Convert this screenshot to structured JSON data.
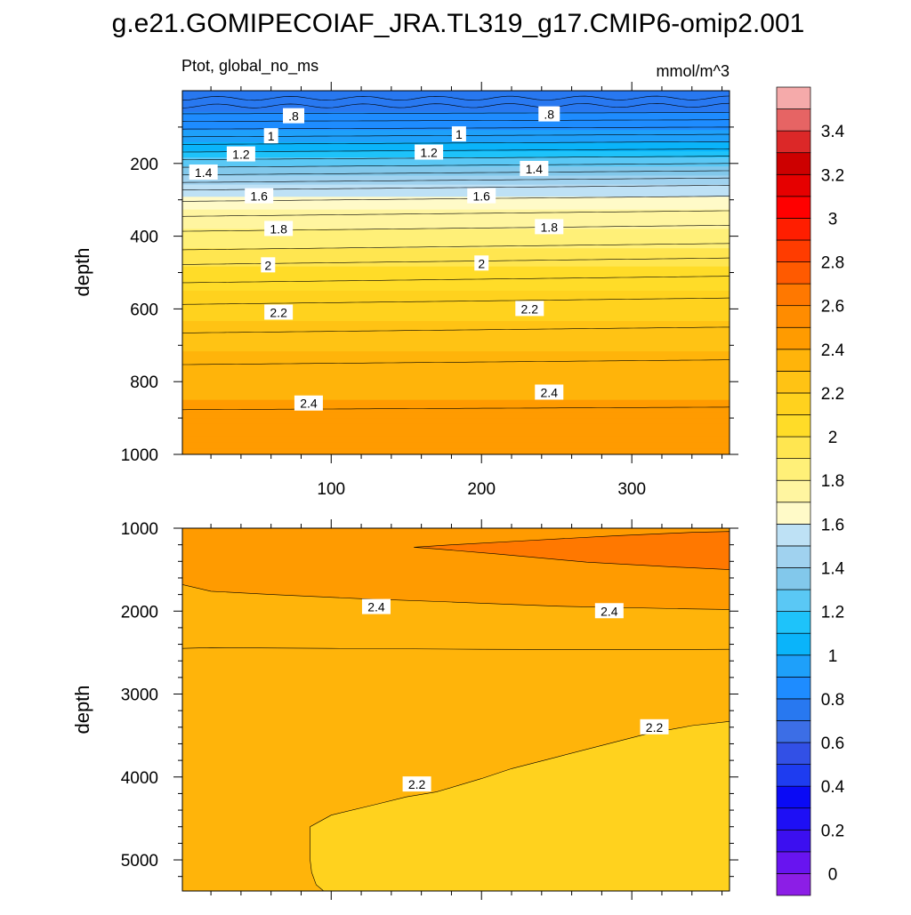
{
  "page_title": "g.e21.GOMIPECOIAF_JRA.TL319_g17.CMIP6-omip2.001",
  "chart_data": [
    {
      "type": "heatmap",
      "subtitle_left": "Ptot, global_no_ms",
      "subtitle_right": "mmol/m^3",
      "ylabel": "depth",
      "xlabel": "",
      "xlim": [
        1,
        365
      ],
      "ylim": [
        0,
        1000
      ],
      "y_reversed": true,
      "x_ticks": [
        100,
        200,
        300
      ],
      "x_tick_labels": [
        "100",
        "200",
        "300"
      ],
      "y_ticks": [
        200,
        400,
        600,
        800,
        1000
      ],
      "y_tick_labels": [
        "200",
        "400",
        "600",
        "800",
        "1000"
      ],
      "field_profile": [
        {
          "depth": 0,
          "value": 0.72
        },
        {
          "depth": 50,
          "value": 0.78
        },
        {
          "depth": 100,
          "value": 0.86
        },
        {
          "depth": 150,
          "value": 1.02
        },
        {
          "depth": 200,
          "value": 1.28
        },
        {
          "depth": 250,
          "value": 1.48
        },
        {
          "depth": 300,
          "value": 1.62
        },
        {
          "depth": 340,
          "value": 1.74
        },
        {
          "depth": 400,
          "value": 1.84
        },
        {
          "depth": 450,
          "value": 1.94
        },
        {
          "depth": 500,
          "value": 2.04
        },
        {
          "depth": 600,
          "value": 2.17
        },
        {
          "depth": 700,
          "value": 2.28
        },
        {
          "depth": 800,
          "value": 2.36
        },
        {
          "depth": 850,
          "value": 2.4
        },
        {
          "depth": 900,
          "value": 2.43
        },
        {
          "depth": 1000,
          "value": 2.47
        }
      ],
      "contour_lines": [
        {
          "depth": 20
        },
        {
          "depth": 40
        },
        {
          "depth": 60
        },
        {
          "depth": 80
        },
        {
          "depth": 100
        },
        {
          "depth": 120
        },
        {
          "depth": 140
        },
        {
          "depth": 160
        },
        {
          "depth": 180
        },
        {
          "depth": 200
        },
        {
          "depth": 220
        },
        {
          "depth": 240
        },
        {
          "depth": 260
        },
        {
          "depth": 290
        },
        {
          "depth": 330
        },
        {
          "depth": 370
        },
        {
          "depth": 420
        },
        {
          "depth": 460
        },
        {
          "depth": 510
        },
        {
          "depth": 570
        },
        {
          "depth": 650
        },
        {
          "depth": 740
        },
        {
          "depth": 870
        }
      ],
      "contour_labels": [
        {
          "text": ".8",
          "x": 75,
          "depth": 70
        },
        {
          "text": ".8",
          "x": 245,
          "depth": 65
        },
        {
          "text": "1",
          "x": 60,
          "depth": 125
        },
        {
          "text": "1",
          "x": 185,
          "depth": 120
        },
        {
          "text": "1.2",
          "x": 40,
          "depth": 175
        },
        {
          "text": "1.2",
          "x": 165,
          "depth": 170
        },
        {
          "text": "1.4",
          "x": 15,
          "depth": 225
        },
        {
          "text": "1.4",
          "x": 235,
          "depth": 215
        },
        {
          "text": "1.6",
          "x": 52,
          "depth": 290
        },
        {
          "text": "1.6",
          "x": 200,
          "depth": 290
        },
        {
          "text": "1.8",
          "x": 65,
          "depth": 380
        },
        {
          "text": "1.8",
          "x": 245,
          "depth": 375
        },
        {
          "text": "2",
          "x": 58,
          "depth": 480
        },
        {
          "text": "2",
          "x": 200,
          "depth": 475
        },
        {
          "text": "2.2",
          "x": 65,
          "depth": 610
        },
        {
          "text": "2.2",
          "x": 232,
          "depth": 600
        },
        {
          "text": "2.4",
          "x": 85,
          "depth": 860
        },
        {
          "text": "2.4",
          "x": 245,
          "depth": 830
        }
      ]
    },
    {
      "type": "heatmap",
      "ylabel": "depth",
      "xlabel": "",
      "xlim": [
        1,
        365
      ],
      "ylim": [
        1000,
        5375
      ],
      "y_reversed": true,
      "y_ticks": [
        1000,
        2000,
        3000,
        4000,
        5000
      ],
      "y_tick_labels": [
        "1000",
        "2000",
        "3000",
        "4000",
        "5000"
      ],
      "regions": [
        {
          "name": "2.4-2.6 band",
          "value": 2.45
        },
        {
          "name": "2.6 tongue",
          "value": 2.63
        },
        {
          "name": "2.2-2.4 band",
          "value": 2.31
        },
        {
          "name": "below 2.2 lobe",
          "value": 2.17
        }
      ],
      "contour_labels": [
        {
          "text": "2.4",
          "x": 130,
          "depth": 1950
        },
        {
          "text": "2.4",
          "x": 285,
          "depth": 2000
        },
        {
          "text": "2.2",
          "x": 315,
          "depth": 3400
        },
        {
          "text": "2.2",
          "x": 157,
          "depth": 4090
        }
      ]
    }
  ],
  "colorbar": {
    "levels": [
      -0.1,
      0,
      0.1,
      0.2,
      0.3,
      0.4,
      0.5,
      0.6,
      0.7,
      0.8,
      0.9,
      1.0,
      1.1,
      1.2,
      1.3,
      1.4,
      1.5,
      1.6,
      1.7,
      1.8,
      1.9,
      2.0,
      2.1,
      2.2,
      2.3,
      2.4,
      2.5,
      2.6,
      2.7,
      2.8,
      2.9,
      3.0,
      3.1,
      3.2,
      3.3,
      3.4,
      3.5,
      3.6
    ],
    "colors": [
      "#8c1ee6",
      "#6814f0",
      "#3c0ff0",
      "#1e0ff5",
      "#0a0af5",
      "#1e3cf0",
      "#3250e6",
      "#3c6ee6",
      "#2878f0",
      "#1e8cff",
      "#1ea0fa",
      "#0ab4fa",
      "#1ec3fa",
      "#5ac8f5",
      "#82c8eb",
      "#a0d2ef",
      "#bee1f5",
      "#fffac8",
      "#fff5a0",
      "#fff078",
      "#ffe650",
      "#ffdc28",
      "#ffd21e",
      "#ffc314",
      "#ffb40a",
      "#ff9b00",
      "#ff8c00",
      "#ff7800",
      "#ff5a00",
      "#ff3c00",
      "#ff1e00",
      "#ff0000",
      "#e60000",
      "#cd0000",
      "#dc2828",
      "#e66464",
      "#f5aaaa"
    ],
    "tick_values": [
      0,
      0.2,
      0.4,
      0.6,
      0.8,
      1,
      1.2,
      1.4,
      1.6,
      1.8,
      2,
      2.2,
      2.4,
      2.6,
      2.8,
      3,
      3.2,
      3.4
    ],
    "tick_labels": [
      "0",
      "0.2",
      "0.4",
      "0.6",
      "0.8",
      "1",
      "1.2",
      "1.4",
      "1.6",
      "1.8",
      "2",
      "2.2",
      "2.4",
      "2.6",
      "2.8",
      "3",
      "3.2",
      "3.4"
    ]
  }
}
